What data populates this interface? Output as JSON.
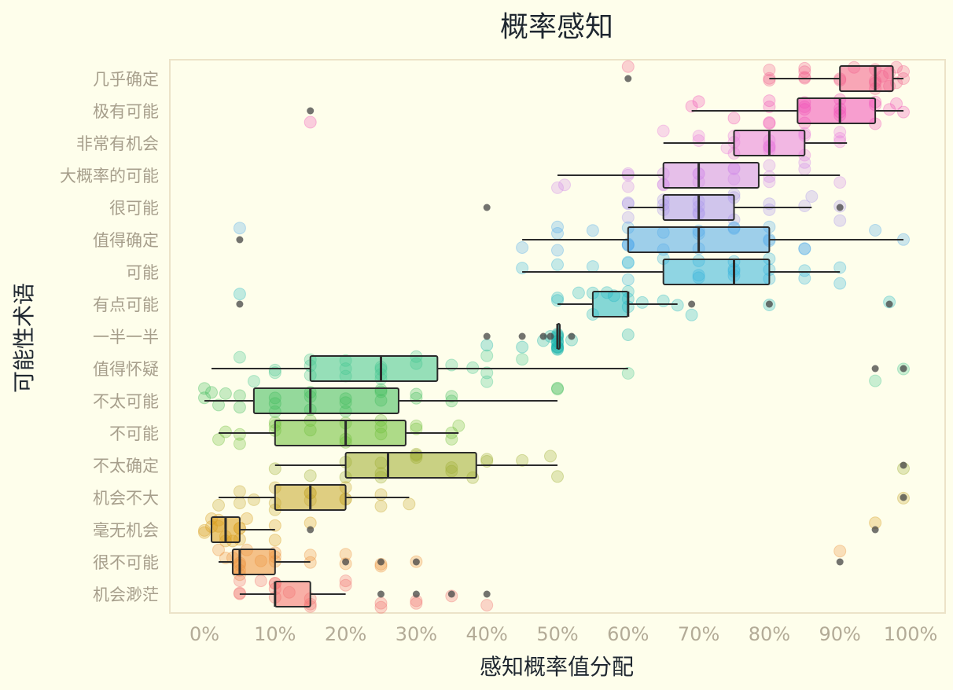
{
  "chart_data": {
    "type": "box",
    "title": "概率感知",
    "xlabel": "感知概率值分配",
    "ylabel": "可能性术语",
    "xlim": [
      -5,
      105
    ],
    "x_ticks": [
      0,
      10,
      20,
      30,
      40,
      50,
      60,
      70,
      80,
      90,
      100
    ],
    "x_tick_labels": [
      "0%",
      "10%",
      "20%",
      "30%",
      "40%",
      "50%",
      "60%",
      "70%",
      "80%",
      "90%",
      "100%"
    ],
    "grid": false,
    "legend": "none",
    "categories": [
      "几乎确定",
      "极有可能",
      "非常有机会",
      "大概率的可能",
      "很可能",
      "值得确定",
      "可能",
      "有点可能",
      "一半一半",
      "值得怀疑",
      "不太可能",
      "不可能",
      "不太确定",
      "机会不大",
      "毫无机会",
      "很不可能",
      "机会渺茫"
    ],
    "colors": [
      "#f25c8b",
      "#f04fb8",
      "#e87bdd",
      "#d28ae8",
      "#a995ec",
      "#4ea8ea",
      "#33b2dc",
      "#21b6c2",
      "#19b4ae",
      "#40c58e",
      "#3dba59",
      "#6cbe37",
      "#9cac2e",
      "#c5a52a",
      "#d89a18",
      "#ec8f38",
      "#f26d6d"
    ],
    "boxes": [
      {
        "q1": 90,
        "median": 95,
        "q3": 97.5,
        "whisker_low": 80,
        "whisker_high": 99,
        "outliers": [
          60
        ]
      },
      {
        "q1": 84,
        "median": 90,
        "q3": 95,
        "whisker_low": 69,
        "whisker_high": 99,
        "outliers": [
          15
        ]
      },
      {
        "q1": 75,
        "median": 80,
        "q3": 85,
        "whisker_low": 65,
        "whisker_high": 91,
        "outliers": []
      },
      {
        "q1": 65,
        "median": 70,
        "q3": 78.5,
        "whisker_low": 50,
        "whisker_high": 90,
        "outliers": []
      },
      {
        "q1": 65,
        "median": 70,
        "q3": 75,
        "whisker_low": 60,
        "whisker_high": 86,
        "outliers": [
          40,
          90
        ]
      },
      {
        "q1": 60,
        "median": 70,
        "q3": 80,
        "whisker_low": 45,
        "whisker_high": 99,
        "outliers": [
          5
        ]
      },
      {
        "q1": 65,
        "median": 75,
        "q3": 80,
        "whisker_low": 45,
        "whisker_high": 90,
        "outliers": []
      },
      {
        "q1": 55,
        "median": 60,
        "q3": 60,
        "whisker_low": 50,
        "whisker_high": 67,
        "outliers": [
          5,
          69,
          80,
          97
        ]
      },
      {
        "q1": 50,
        "median": 50,
        "q3": 50,
        "whisker_low": 50,
        "whisker_high": 50,
        "outliers": [
          40,
          45,
          48,
          49,
          52
        ]
      },
      {
        "q1": 15,
        "median": 25,
        "q3": 33,
        "whisker_low": 1,
        "whisker_high": 60,
        "outliers": [
          95,
          99
        ]
      },
      {
        "q1": 7,
        "median": 15,
        "q3": 27.5,
        "whisker_low": 0,
        "whisker_high": 50,
        "outliers": []
      },
      {
        "q1": 10,
        "median": 20,
        "q3": 28.5,
        "whisker_low": 2,
        "whisker_high": 36,
        "outliers": []
      },
      {
        "q1": 20,
        "median": 26,
        "q3": 38.5,
        "whisker_low": 10,
        "whisker_high": 50,
        "outliers": [
          99
        ]
      },
      {
        "q1": 10,
        "median": 15,
        "q3": 20,
        "whisker_low": 2,
        "whisker_high": 29,
        "outliers": [
          99
        ]
      },
      {
        "q1": 1,
        "median": 3,
        "q3": 5,
        "whisker_low": 1,
        "whisker_high": 10,
        "outliers": [
          15,
          95
        ]
      },
      {
        "q1": 4,
        "median": 5,
        "q3": 10,
        "whisker_low": 2,
        "whisker_high": 15,
        "outliers": [
          20,
          25,
          30,
          90
        ]
      },
      {
        "q1": 10,
        "median": 10,
        "q3": 15,
        "whisker_low": 5,
        "whisker_high": 20,
        "outliers": [
          25,
          30,
          35,
          40
        ]
      }
    ],
    "strip_points": [
      [
        80,
        80,
        85,
        85,
        85,
        90,
        92,
        95,
        95,
        96,
        97,
        97,
        98,
        98,
        99,
        99,
        95,
        95,
        90,
        85,
        80,
        60
      ],
      [
        80,
        80,
        80,
        85,
        85,
        85,
        90,
        90,
        90,
        95,
        95,
        95,
        97,
        98,
        99,
        69,
        70,
        75,
        80,
        85,
        90,
        15
      ],
      [
        70,
        75,
        75,
        75,
        80,
        80,
        80,
        80,
        85,
        85,
        90,
        90,
        65,
        70,
        74,
        80,
        85,
        90
      ],
      [
        60,
        60,
        65,
        65,
        70,
        70,
        75,
        75,
        80,
        80,
        85,
        90,
        51,
        50,
        60,
        65,
        70,
        75,
        80,
        85
      ],
      [
        60,
        60,
        65,
        65,
        70,
        70,
        70,
        75,
        75,
        80,
        80,
        85,
        86,
        90,
        90,
        60,
        65,
        70,
        75
      ],
      [
        45,
        50,
        50,
        50,
        55,
        60,
        60,
        60,
        65,
        65,
        70,
        70,
        75,
        75,
        80,
        80,
        85,
        85,
        95,
        99,
        60,
        70,
        80,
        5
      ],
      [
        45,
        50,
        55,
        60,
        60,
        60,
        65,
        70,
        70,
        75,
        75,
        75,
        80,
        80,
        80,
        85,
        85,
        90,
        90,
        70,
        75
      ],
      [
        50,
        50,
        53,
        55,
        55,
        57,
        58,
        60,
        60,
        60,
        62,
        65,
        67,
        69,
        80,
        97,
        5
      ],
      [
        45,
        48,
        49,
        50,
        50,
        50,
        50,
        50,
        50,
        50,
        50,
        50,
        50,
        50,
        50,
        52,
        40,
        60
      ],
      [
        5,
        7,
        10,
        10,
        15,
        15,
        20,
        20,
        25,
        25,
        25,
        30,
        35,
        38,
        40,
        40,
        45,
        60,
        15,
        20,
        25,
        30,
        40,
        95,
        99
      ],
      [
        0,
        0,
        1,
        2,
        3,
        5,
        5,
        10,
        10,
        10,
        15,
        15,
        15,
        20,
        20,
        20,
        25,
        25,
        25,
        30,
        30,
        35,
        35,
        50,
        50
      ],
      [
        2,
        3,
        5,
        5,
        10,
        10,
        10,
        15,
        15,
        20,
        20,
        20,
        25,
        25,
        25,
        30,
        30,
        35,
        35,
        36
      ],
      [
        10,
        15,
        20,
        20,
        25,
        25,
        25,
        30,
        30,
        30,
        35,
        35,
        38,
        40,
        40,
        45,
        49,
        50,
        99
      ],
      [
        2,
        5,
        5,
        7,
        10,
        10,
        10,
        15,
        15,
        15,
        20,
        20,
        20,
        25,
        25,
        29,
        99
      ],
      [
        0,
        0,
        1,
        1,
        2,
        2,
        3,
        3,
        4,
        5,
        5,
        5,
        6,
        10,
        10,
        15,
        95
      ],
      [
        2,
        3,
        4,
        5,
        5,
        5,
        5,
        6,
        8,
        10,
        10,
        10,
        15,
        15,
        20,
        20,
        25,
        25,
        30,
        90
      ],
      [
        5,
        5,
        5,
        8,
        10,
        10,
        10,
        10,
        12,
        15,
        15,
        15,
        20,
        20,
        25,
        25,
        30,
        30,
        35,
        40
      ]
    ]
  }
}
